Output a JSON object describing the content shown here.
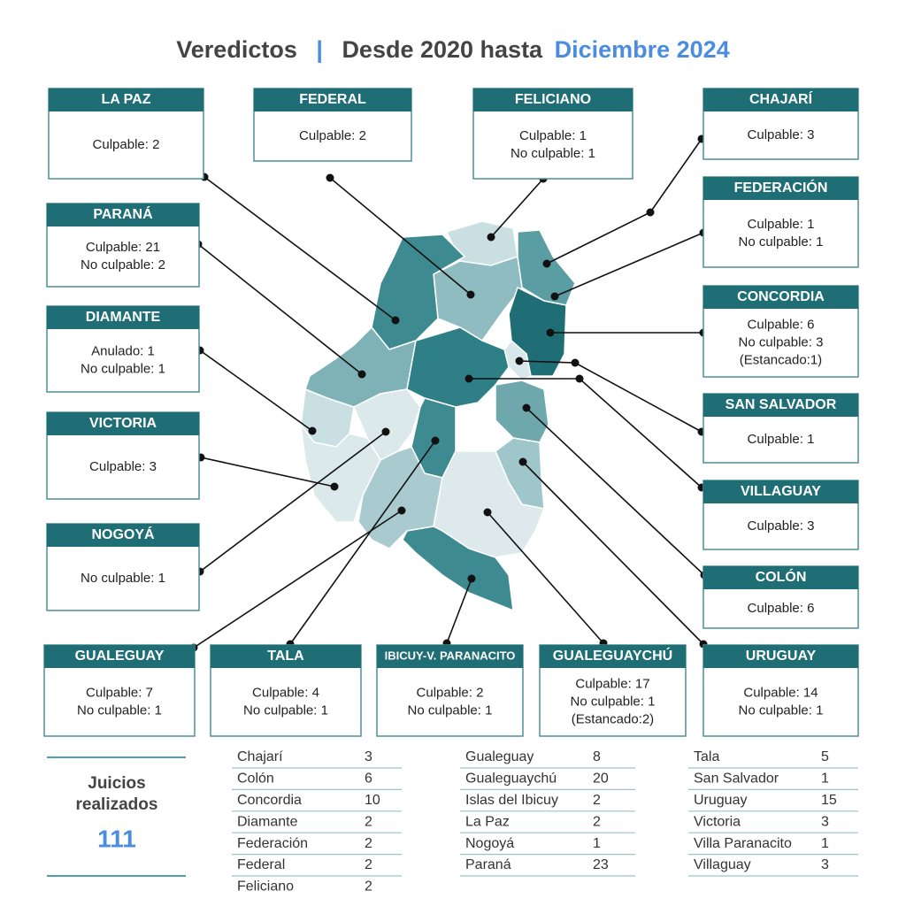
{
  "header": {
    "title_part1": "Veredictos",
    "separator": "|",
    "title_part2": "Desde 2020 hasta",
    "highlight": "Diciembre 2024"
  },
  "boxes": [
    {
      "title": "LA PAZ",
      "lines": [
        "Culpable: 2"
      ]
    },
    {
      "title": "FEDERAL",
      "lines": [
        "Culpable: 2"
      ]
    },
    {
      "title": "FELICIANO",
      "lines": [
        "Culpable: 1",
        "No culpable: 1"
      ]
    },
    {
      "title": "CHAJARÍ",
      "lines": [
        "Culpable: 3"
      ]
    },
    {
      "title": "FEDERACIÓN",
      "lines": [
        "Culpable: 1",
        "No culpable: 1"
      ]
    },
    {
      "title": "PARANÁ",
      "lines": [
        "Culpable: 21",
        "No culpable: 2"
      ]
    },
    {
      "title": "CONCORDIA",
      "lines": [
        "Culpable: 6",
        "No culpable: 3",
        "(Estancado:1)"
      ]
    },
    {
      "title": "DIAMANTE",
      "lines": [
        "Anulado: 1",
        "No culpable: 1"
      ]
    },
    {
      "title": "SAN SALVADOR",
      "lines": [
        "Culpable: 1"
      ]
    },
    {
      "title": "VICTORIA",
      "lines": [
        "Culpable: 3"
      ]
    },
    {
      "title": "VILLAGUAY",
      "lines": [
        "Culpable: 3"
      ]
    },
    {
      "title": "NOGOYÁ",
      "lines": [
        "No culpable: 1"
      ]
    },
    {
      "title": "COLÓN",
      "lines": [
        "Culpable: 6"
      ]
    },
    {
      "title": "GUALEGUAY",
      "lines": [
        "Culpable: 7",
        "No culpable: 1"
      ]
    },
    {
      "title": "TALA",
      "lines": [
        "Culpable: 4",
        "No culpable: 1"
      ]
    },
    {
      "title": "IBICUY-V. PARANACITO",
      "lines": [
        "Culpable: 2",
        "No culpable: 1"
      ]
    },
    {
      "title": "GUALEGUAYCHÚ",
      "lines": [
        "Culpable: 17",
        "No culpable: 1",
        "(Estancado:2)"
      ]
    },
    {
      "title": "URUGUAY",
      "lines": [
        "Culpable: 14",
        "No culpable: 1"
      ]
    }
  ],
  "summary": {
    "label_line1": "Juicios",
    "label_line2": "realizados",
    "total": 111
  },
  "table": {
    "columns": [
      [
        [
          "Chajarí",
          3
        ],
        [
          "Colón",
          6
        ],
        [
          "Concordia",
          10
        ],
        [
          "Diamante",
          2
        ],
        [
          "Federación",
          2
        ],
        [
          "Federal",
          2
        ],
        [
          "Feliciano",
          2
        ]
      ],
      [
        [
          "Gualeguay",
          8
        ],
        [
          "Gualeguaychú",
          20
        ],
        [
          "Islas del Ibicuy",
          2
        ],
        [
          "La Paz",
          2
        ],
        [
          "Nogoyá",
          1
        ],
        [
          "Paraná",
          23
        ]
      ],
      [
        [
          "Tala",
          5
        ],
        [
          "San Salvador",
          1
        ],
        [
          "Uruguay",
          15
        ],
        [
          "Victoria",
          3
        ],
        [
          "Villa Paranacito",
          1
        ],
        [
          "Villaguay",
          3
        ]
      ]
    ]
  }
}
